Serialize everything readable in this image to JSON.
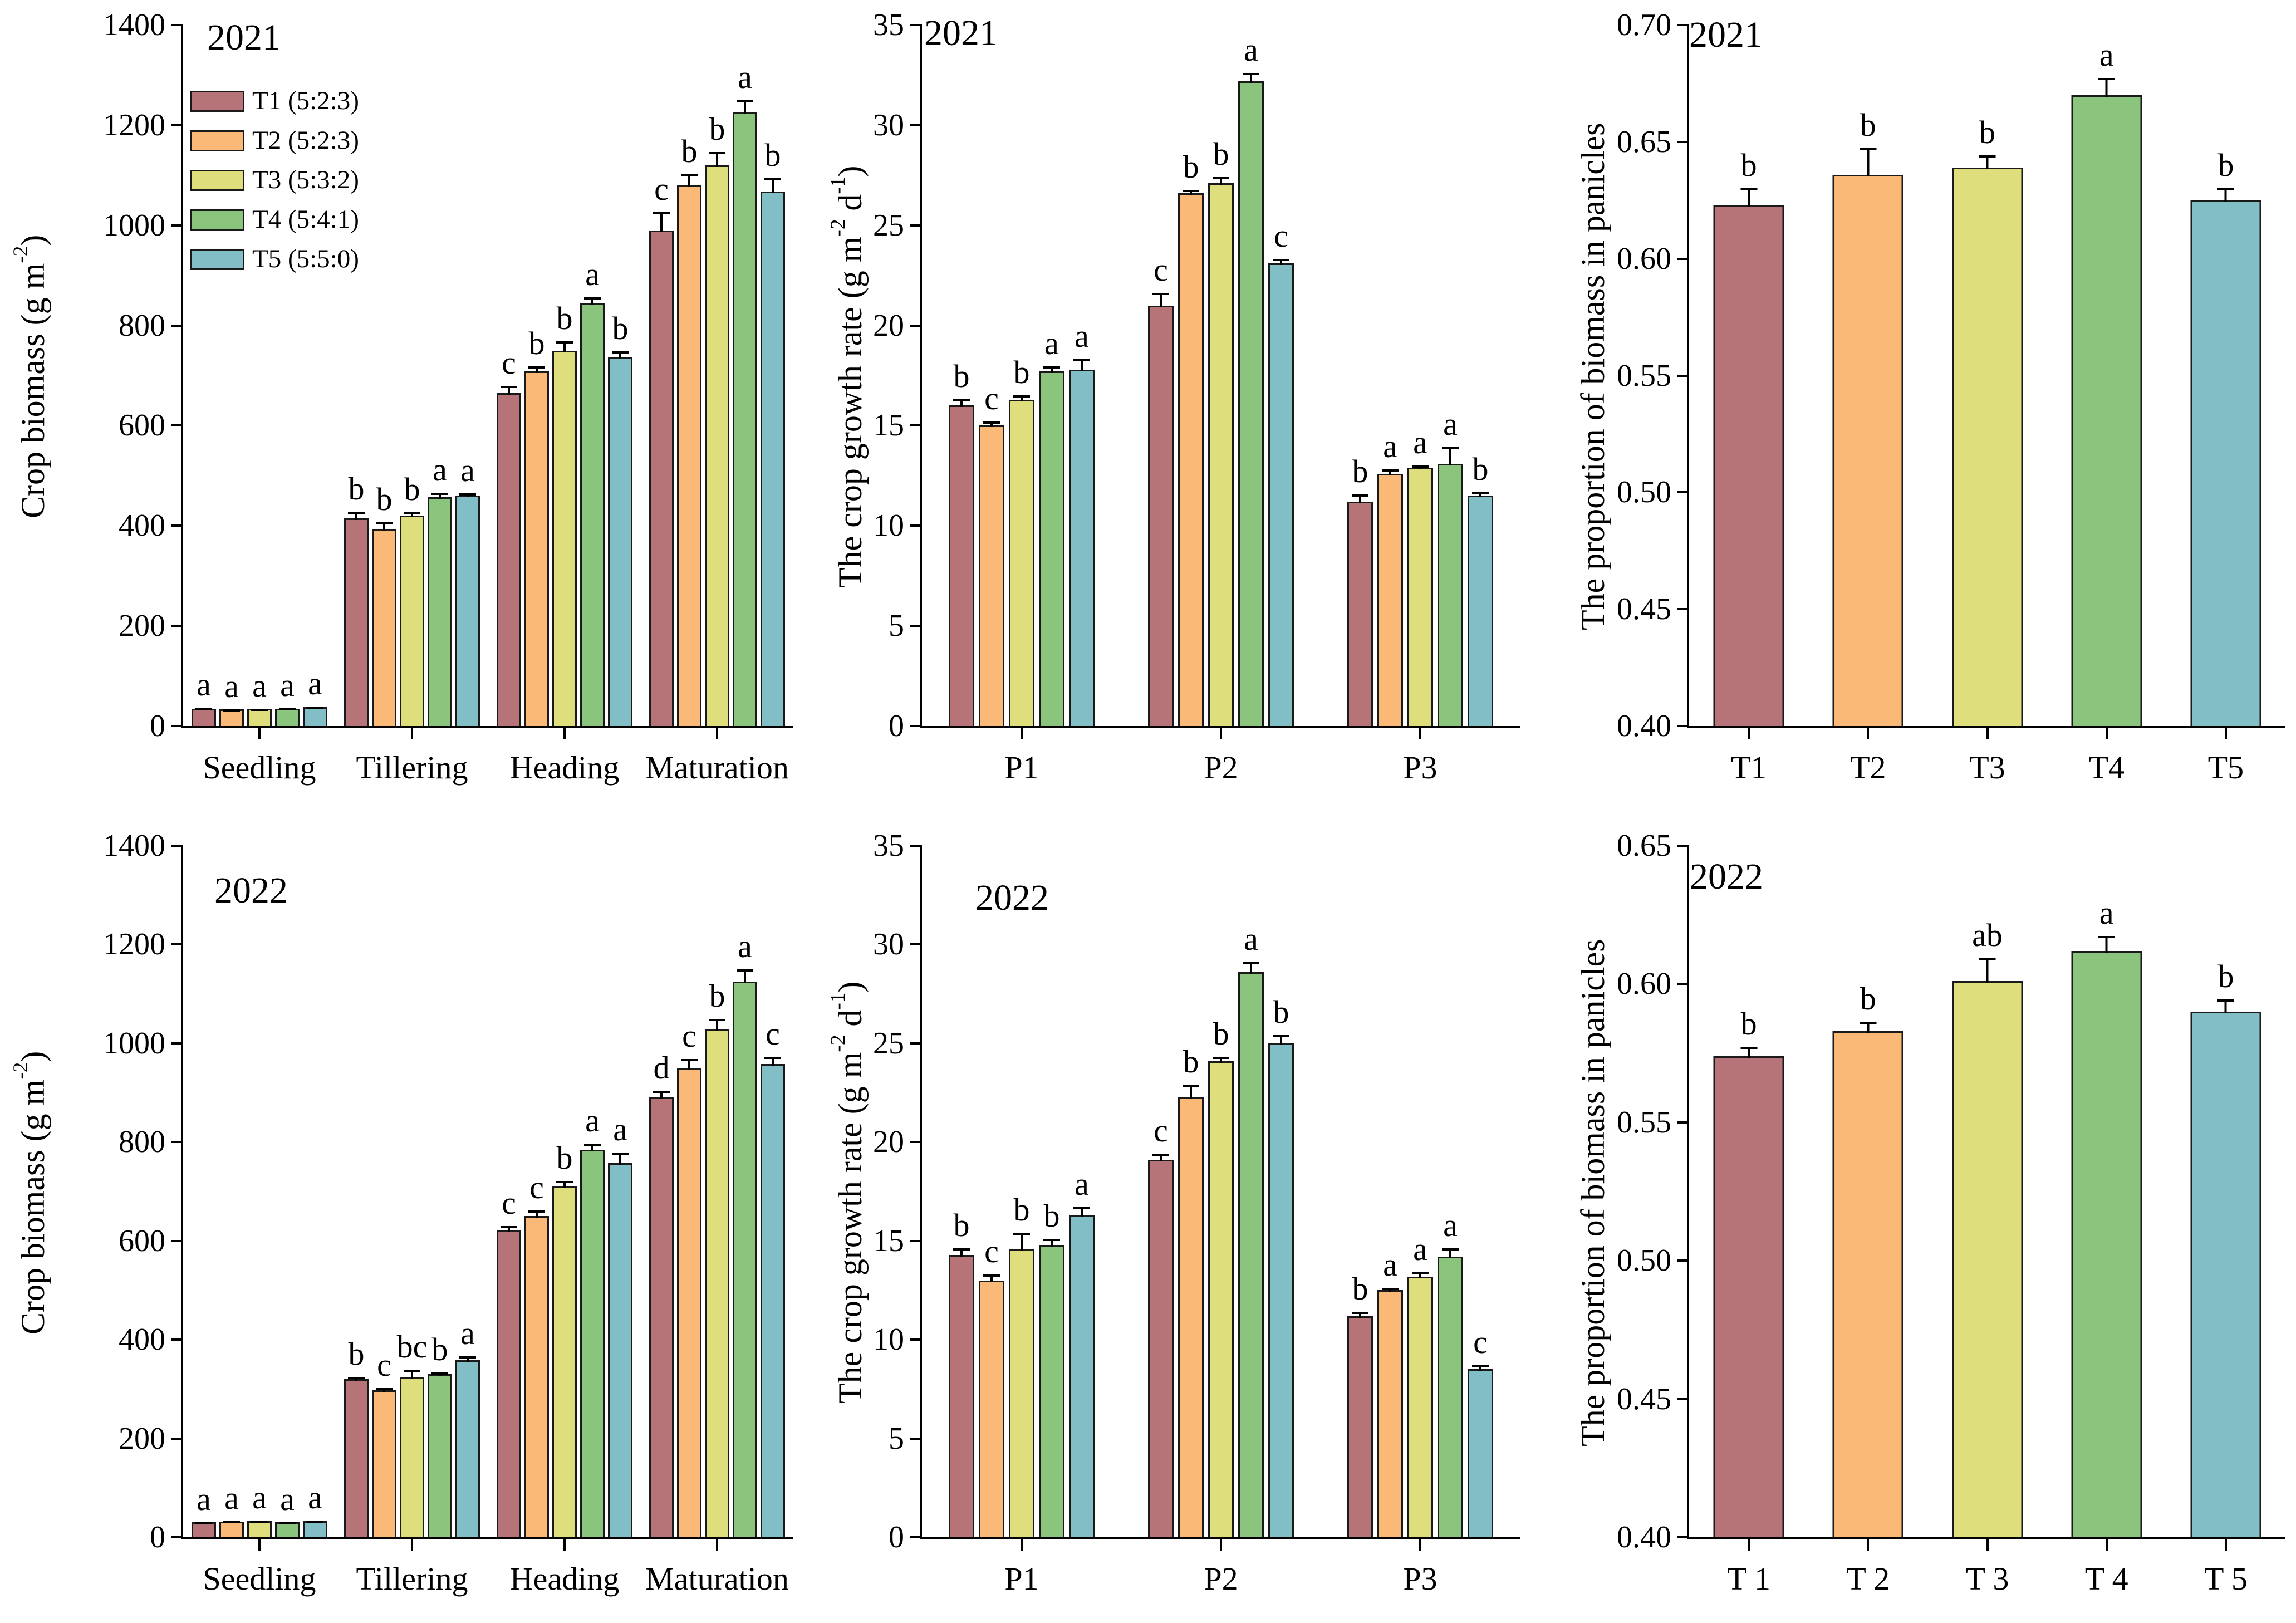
{
  "figure": {
    "background": "#ffffff",
    "axis_color": "#000000",
    "bar_border_color": "#1a1a1a",
    "palette": [
      {
        "key": "T1",
        "label": "T1 (5:2:3)",
        "color": "#b77478"
      },
      {
        "key": "T2",
        "label": "T2 (5:2:3)",
        "color": "#fbb977"
      },
      {
        "key": "T3",
        "label": "T3 (5:3:2)",
        "color": "#dede7d"
      },
      {
        "key": "T4",
        "label": "T4 (5:4:1)",
        "color": "#8bc47d"
      },
      {
        "key": "T5",
        "label": "T5 (5:5:0)",
        "color": "#82bec5"
      }
    ]
  },
  "chart_data": [
    {
      "id": "crop-biomass-2021",
      "type": "bar",
      "year": "2021",
      "ylabel": "Crop biomass  (g m^-2^)",
      "ylim": [
        0,
        1400
      ],
      "ytick_step": 200,
      "ytick_decimals": 0,
      "legend": true,
      "grid": false,
      "categories": [
        "Seedling",
        "Tillering",
        "Heading",
        "Maturation"
      ],
      "series": [
        {
          "name": "T1 (5:2:3)",
          "values": [
            35,
            415,
            665,
            990
          ],
          "errors": [
            5,
            16,
            18,
            40
          ],
          "letters": [
            "a",
            "b",
            "c",
            "c"
          ]
        },
        {
          "name": "T2 (5:2:3)",
          "values": [
            33,
            392,
            708,
            1080
          ],
          "errors": [
            4,
            18,
            14,
            25
          ],
          "letters": [
            "a",
            "b",
            "b",
            "b"
          ]
        },
        {
          "name": "T3 (5:3:2)",
          "values": [
            34,
            420,
            750,
            1120
          ],
          "errors": [
            4,
            10,
            22,
            30
          ],
          "letters": [
            "a",
            "b",
            "b",
            "b"
          ]
        },
        {
          "name": "T4 (5:4:1)",
          "values": [
            35,
            457,
            845,
            1225
          ],
          "errors": [
            4,
            12,
            15,
            28
          ],
          "letters": [
            "a",
            "a",
            "a",
            "a"
          ]
        },
        {
          "name": "T5 (5:5:0)",
          "values": [
            38,
            460,
            737,
            1068
          ],
          "errors": [
            4,
            8,
            15,
            30
          ],
          "letters": [
            "a",
            "a",
            "b",
            "b"
          ]
        }
      ]
    },
    {
      "id": "crop-growth-rate-2021",
      "type": "bar",
      "year": "2021",
      "ylabel": "The crop growth rate (g m^-2^ d^-1^)",
      "ylim": [
        0,
        35
      ],
      "ytick_step": 5,
      "ytick_decimals": 0,
      "legend": false,
      "grid": false,
      "categories": [
        "P1",
        "P2",
        "P3"
      ],
      "series": [
        {
          "name": "T1 (5:2:3)",
          "values": [
            16.0,
            21.0,
            11.2
          ],
          "errors": [
            0.4,
            0.7,
            0.45
          ],
          "letters": [
            "b",
            "c",
            "b"
          ]
        },
        {
          "name": "T2 (5:2:3)",
          "values": [
            15.0,
            26.6,
            12.6
          ],
          "errors": [
            0.3,
            0.25,
            0.3
          ],
          "letters": [
            "c",
            "b",
            "a"
          ]
        },
        {
          "name": "T3 (5:3:2)",
          "values": [
            16.3,
            27.1,
            12.9
          ],
          "errors": [
            0.3,
            0.4,
            0.2
          ],
          "letters": [
            "b",
            "b",
            "a"
          ]
        },
        {
          "name": "T4 (5:4:1)",
          "values": [
            17.7,
            32.2,
            13.1
          ],
          "errors": [
            0.35,
            0.5,
            0.9
          ],
          "letters": [
            "a",
            "a",
            "a"
          ]
        },
        {
          "name": "T5 (5:5:0)",
          "values": [
            17.8,
            23.1,
            11.5
          ],
          "errors": [
            0.6,
            0.3,
            0.25
          ],
          "letters": [
            "a",
            "c",
            "b"
          ]
        }
      ]
    },
    {
      "id": "panicle-biomass-proportion-2021",
      "type": "bar",
      "year": "2021",
      "ylabel": "The proportion of biomass in panicles",
      "ylim": [
        0.4,
        0.7
      ],
      "ytick_step": 0.05,
      "ytick_decimals": 2,
      "legend": false,
      "grid": false,
      "color_per_bar": true,
      "categories": [
        "T1",
        "T2",
        "T3",
        "T4",
        "T5"
      ],
      "series": [
        {
          "name": "Proportion",
          "values": [
            0.623,
            0.636,
            0.639,
            0.67,
            0.625
          ],
          "errors": [
            0.008,
            0.012,
            0.006,
            0.008,
            0.006
          ],
          "letters": [
            "b",
            "b",
            "b",
            "a",
            "b"
          ]
        }
      ]
    },
    {
      "id": "crop-biomass-2022",
      "type": "bar",
      "year": "2022",
      "ylabel": "Crop biomass (g m^-2^)",
      "ylim": [
        0,
        1400
      ],
      "ytick_step": 200,
      "ytick_decimals": 0,
      "legend": false,
      "grid": false,
      "categories": [
        "Seedling",
        "Tillering",
        "Heading",
        "Maturation"
      ],
      "series": [
        {
          "name": "T1 (5:2:3)",
          "values": [
            30,
            320,
            622,
            890
          ],
          "errors": [
            4,
            8,
            12,
            18
          ],
          "letters": [
            "a",
            "b",
            "c",
            "d"
          ]
        },
        {
          "name": "T2 (5:2:3)",
          "values": [
            32,
            298,
            650,
            950
          ],
          "errors": [
            4,
            7,
            15,
            22
          ],
          "letters": [
            "a",
            "c",
            "c",
            "c"
          ]
        },
        {
          "name": "T3 (5:3:2)",
          "values": [
            33,
            325,
            710,
            1028
          ],
          "errors": [
            4,
            18,
            15,
            25
          ],
          "letters": [
            "a",
            "bc",
            "b",
            "b"
          ]
        },
        {
          "name": "T4 (5:4:1)",
          "values": [
            30,
            330,
            785,
            1125
          ],
          "errors": [
            4,
            7,
            15,
            28
          ],
          "letters": [
            "a",
            "b",
            "a",
            "a"
          ]
        },
        {
          "name": "T5 (5:5:0)",
          "values": [
            33,
            358,
            757,
            958
          ],
          "errors": [
            4,
            12,
            25,
            18
          ],
          "letters": [
            "a",
            "a",
            "a",
            "c"
          ]
        }
      ]
    },
    {
      "id": "crop-growth-rate-2022",
      "type": "bar",
      "year": "2022",
      "ylabel": "The crop growth rate (g m^-2^ d^-1^)",
      "ylim": [
        0,
        35
      ],
      "ytick_step": 5,
      "ytick_decimals": 0,
      "legend": false,
      "grid": false,
      "categories": [
        "P1",
        "P2",
        "P3"
      ],
      "series": [
        {
          "name": "T1 (5:2:3)",
          "values": [
            14.3,
            19.1,
            11.2
          ],
          "errors": [
            0.4,
            0.4,
            0.3
          ],
          "letters": [
            "b",
            "c",
            "b"
          ]
        },
        {
          "name": "T2 (5:2:3)",
          "values": [
            13.0,
            22.3,
            12.5
          ],
          "errors": [
            0.4,
            0.7,
            0.2
          ],
          "letters": [
            "c",
            "b",
            "a"
          ]
        },
        {
          "name": "T3 (5:3:2)",
          "values": [
            14.6,
            24.1,
            13.2
          ],
          "errors": [
            0.9,
            0.3,
            0.3
          ],
          "letters": [
            "b",
            "b",
            "a"
          ]
        },
        {
          "name": "T4 (5:4:1)",
          "values": [
            14.8,
            28.6,
            14.2
          ],
          "errors": [
            0.4,
            0.6,
            0.5
          ],
          "letters": [
            "b",
            "a",
            "a"
          ]
        },
        {
          "name": "T5 (5:5:0)",
          "values": [
            16.3,
            25.0,
            8.5
          ],
          "errors": [
            0.5,
            0.5,
            0.3
          ],
          "letters": [
            "a",
            "b",
            "c"
          ]
        }
      ]
    },
    {
      "id": "panicle-biomass-proportion-2022",
      "type": "bar",
      "year": "2022",
      "ylabel": "The proportion of biomass in panicles",
      "ylim": [
        0.4,
        0.65
      ],
      "ytick_step": 0.05,
      "ytick_decimals": 2,
      "legend": false,
      "grid": false,
      "color_per_bar": true,
      "categories": [
        "T 1",
        "T 2",
        "T 3",
        "T 4",
        "T 5"
      ],
      "series": [
        {
          "name": "Proportion",
          "values": [
            0.574,
            0.583,
            0.601,
            0.612,
            0.59
          ],
          "errors": [
            0.004,
            0.004,
            0.009,
            0.006,
            0.005
          ],
          "letters": [
            "b",
            "b",
            "ab",
            "a",
            "b"
          ]
        }
      ]
    }
  ]
}
